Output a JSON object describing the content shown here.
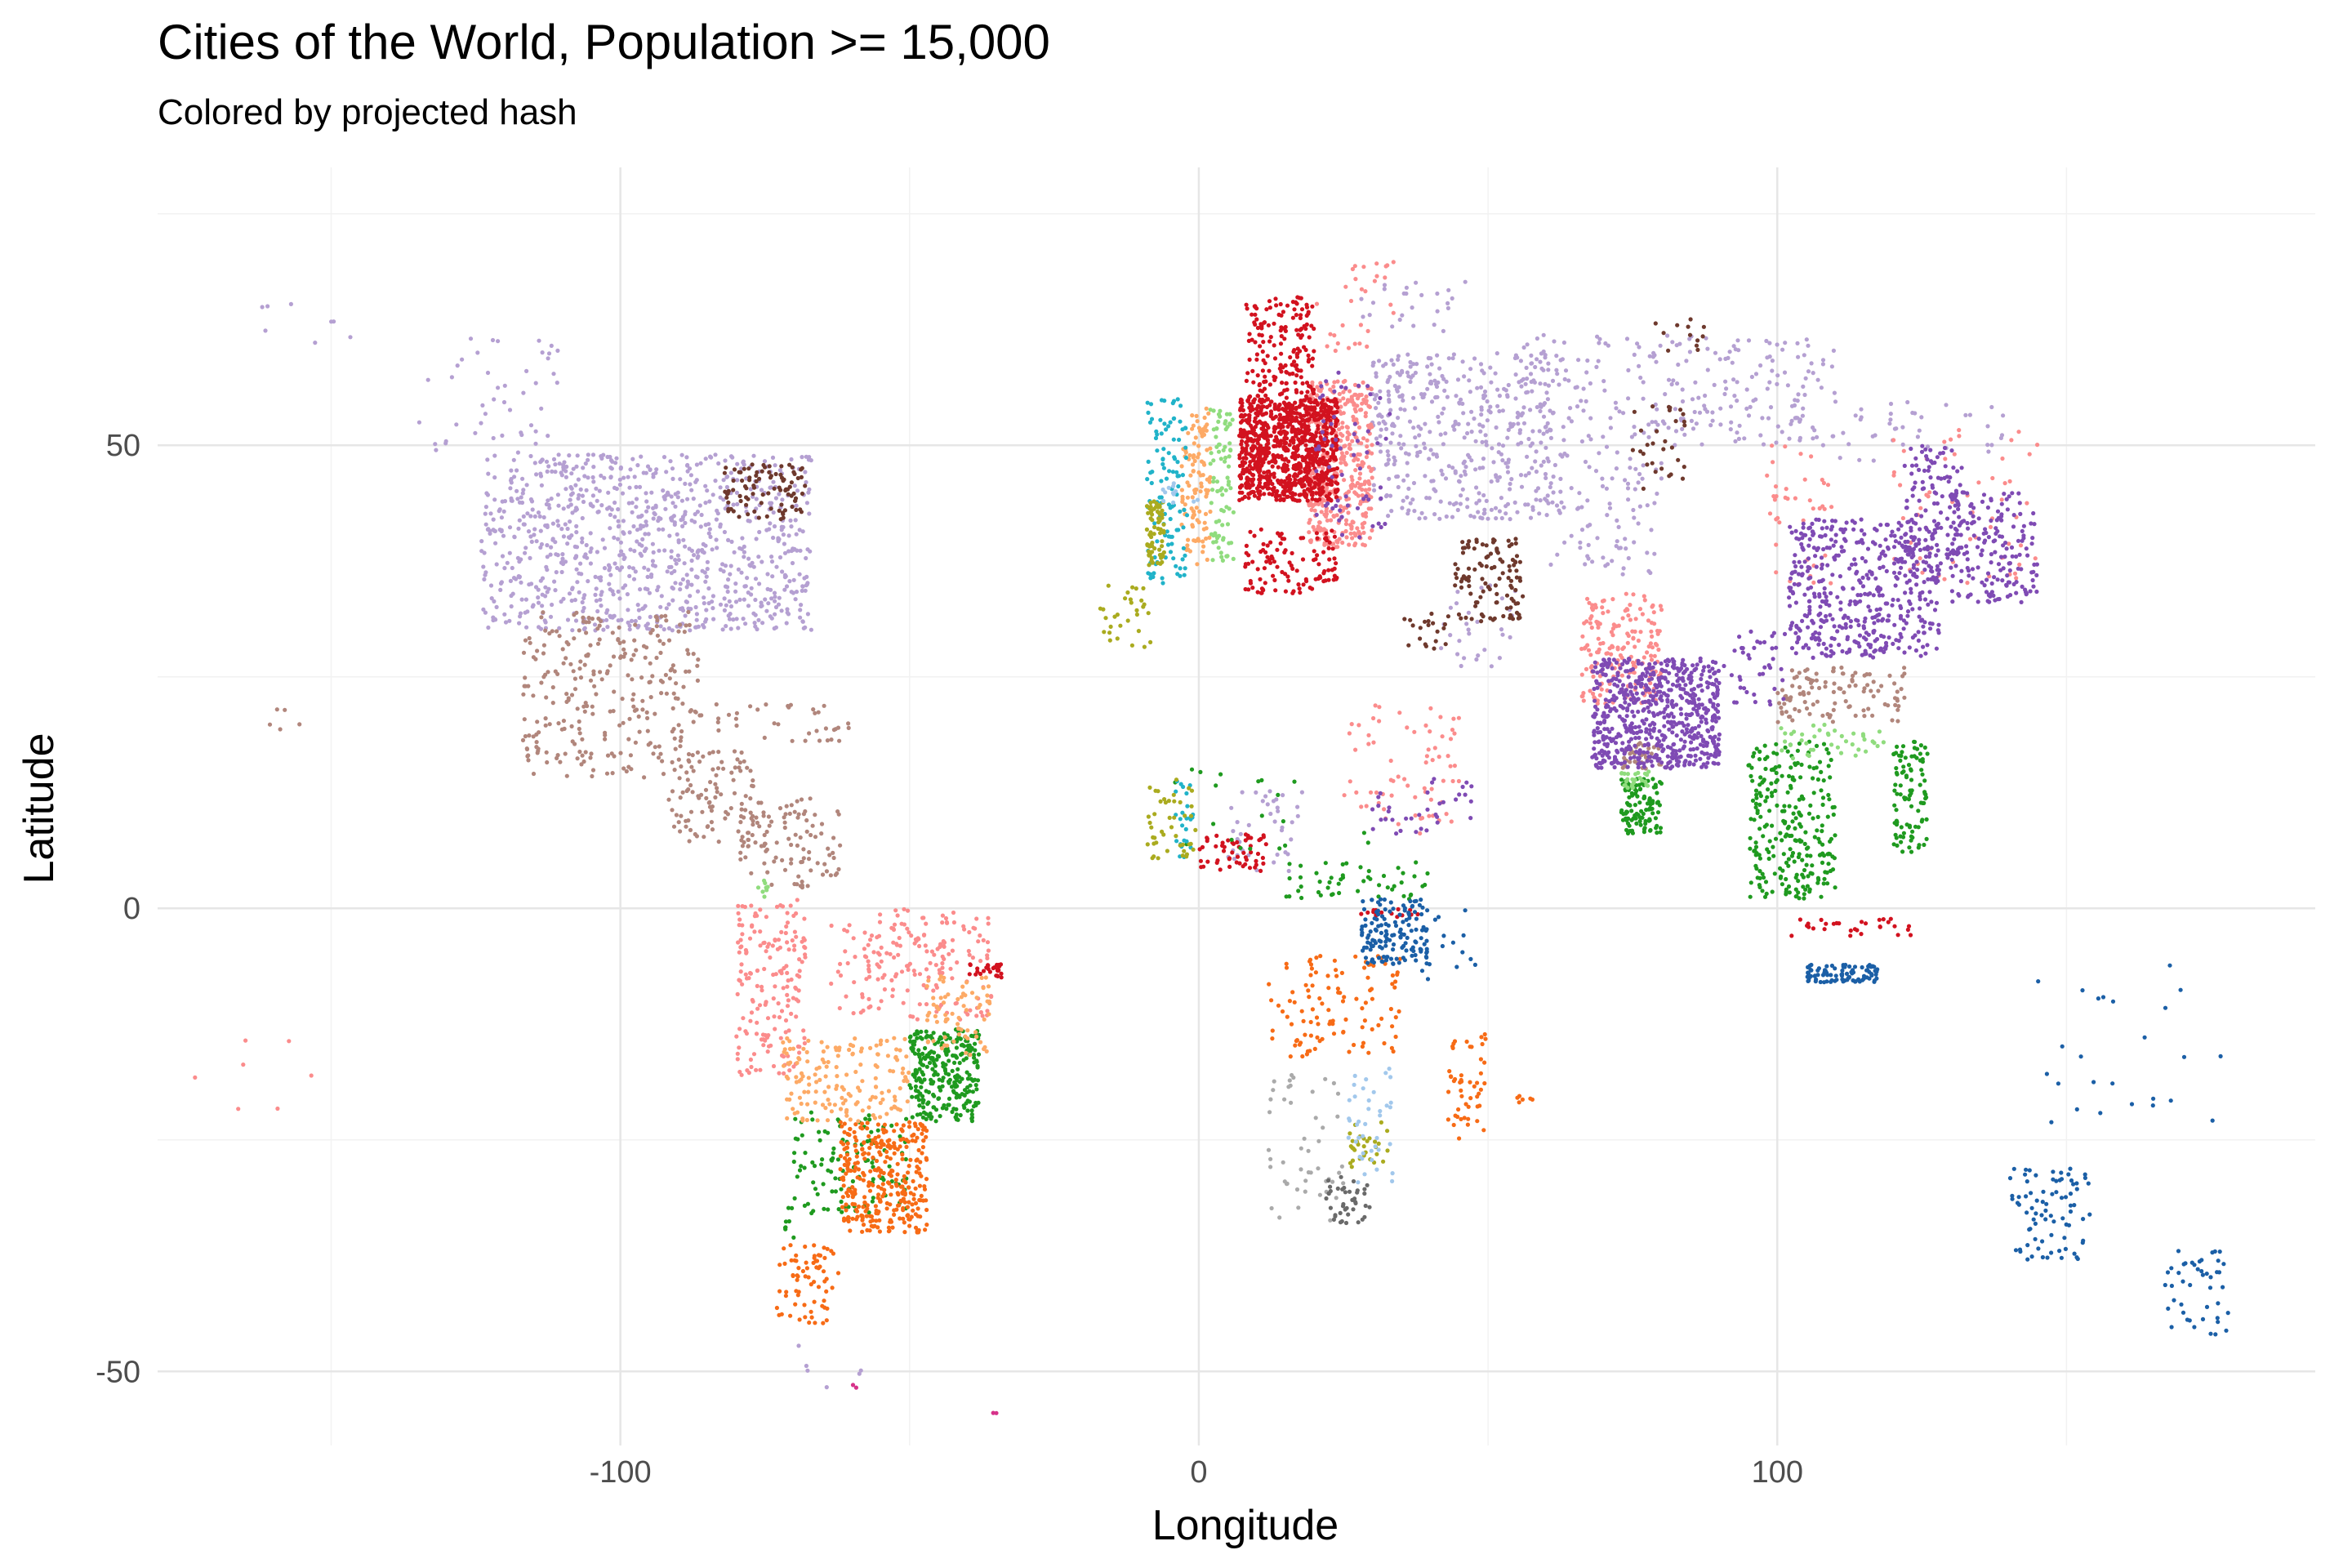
{
  "chart_data": {
    "type": "scatter",
    "title": "Cities of the World, Population >= 15,000",
    "subtitle": "Colored by projected hash",
    "xlabel": "Longitude",
    "ylabel": "Latitude",
    "xlim": [
      -180,
      193
    ],
    "ylim": [
      -58,
      80
    ],
    "x_major_ticks": [
      -100,
      0,
      100
    ],
    "x_minor_ticks": [
      -150,
      -50,
      50,
      150
    ],
    "y_major_ticks": [
      -50,
      0,
      50
    ],
    "y_minor_ticks": [
      -25,
      25,
      75
    ],
    "x_tick_labels": [
      "-100",
      "0",
      "100"
    ],
    "y_tick_labels": [
      "-50",
      "0",
      "50"
    ],
    "grid": true,
    "legend": "none",
    "series": [
      {
        "name": "lavender",
        "color": "#b5a0d2",
        "clusters": [
          {
            "lon": [
              -124,
              -67
            ],
            "lat": [
              30,
              49
            ],
            "n": 950
          },
          {
            "lon": [
              -135,
              -110
            ],
            "lat": [
              49,
              62
            ],
            "n": 45
          },
          {
            "lon": [
              -165,
              -145
            ],
            "lat": [
              60,
              66
            ],
            "n": 8
          },
          {
            "lon": [
              30,
              62
            ],
            "lat": [
              42,
              60
            ],
            "n": 420
          },
          {
            "lon": [
              55,
              110
            ],
            "lat": [
              50,
              62
            ],
            "n": 260
          },
          {
            "lon": [
              60,
              80
            ],
            "lat": [
              36,
              50
            ],
            "n": 90
          },
          {
            "lon": [
              110,
              140
            ],
            "lat": [
              48,
              55
            ],
            "n": 40
          },
          {
            "lon": [
              28,
              48
            ],
            "lat": [
              62,
              68
            ],
            "n": 25
          },
          {
            "lon": [
              5,
              18
            ],
            "lat": [
              4,
              13
            ],
            "n": 40
          },
          {
            "lon": [
              40,
              55
            ],
            "lat": [
              25,
              35
            ],
            "n": 30
          },
          {
            "lon": [
              -70,
              -58
            ],
            "lat": [
              -52,
              -47
            ],
            "n": 6
          }
        ]
      },
      {
        "name": "taupe",
        "color": "#b1867c",
        "clusters": [
          {
            "lon": [
              -117,
              -86
            ],
            "lat": [
              14,
              32
            ],
            "n": 280
          },
          {
            "lon": [
              -92,
              -77
            ],
            "lat": [
              7,
              17
            ],
            "n": 90
          },
          {
            "lon": [
              -80,
              -62
            ],
            "lat": [
              2,
              12
            ],
            "n": 110
          },
          {
            "lon": [
              -85,
              -60
            ],
            "lat": [
              18,
              23
            ],
            "n": 35
          },
          {
            "lon": [
              100,
              122
            ],
            "lat": [
              20,
              26
            ],
            "n": 110
          },
          {
            "lon": [
              73,
              80
            ],
            "lat": [
              15,
              18
            ],
            "n": 35
          },
          {
            "lon": [
              -161,
              -155
            ],
            "lat": [
              19,
              22
            ],
            "n": 5
          }
        ]
      },
      {
        "name": "salmon",
        "color": "#fb8c8c",
        "clusters": [
          {
            "lon": [
              -80,
              -68
            ],
            "lat": [
              -18,
              1
            ],
            "n": 180
          },
          {
            "lon": [
              -64,
              -35
            ],
            "lat": [
              -12,
              -1
            ],
            "n": 120
          },
          {
            "lon": [
              -58,
              -42
            ],
            "lat": [
              -8,
              0
            ],
            "n": 70
          },
          {
            "lon": [
              19,
              30
            ],
            "lat": [
              39,
              57
            ],
            "n": 420
          },
          {
            "lon": [
              66,
              80
            ],
            "lat": [
              22,
              34
            ],
            "n": 180
          },
          {
            "lon": [
              120,
              145
            ],
            "lat": [
              35,
              52
            ],
            "n": 60
          },
          {
            "lon": [
              98,
              110
            ],
            "lat": [
              35,
              50
            ],
            "n": 40
          },
          {
            "lon": [
              25,
              45
            ],
            "lat": [
              8,
              22
            ],
            "n": 70
          },
          {
            "lon": [
              20,
              35
            ],
            "lat": [
              60,
              70
            ],
            "n": 30
          },
          {
            "lon": [
              -175,
              -150
            ],
            "lat": [
              -22,
              -13
            ],
            "n": 7
          }
        ]
      },
      {
        "name": "crimson",
        "color": "#d2121f",
        "clusters": [
          {
            "lon": [
              7,
              24
            ],
            "lat": [
              44,
              55
            ],
            "n": 950
          },
          {
            "lon": [
              8,
              20
            ],
            "lat": [
              55,
              66
            ],
            "n": 170
          },
          {
            "lon": [
              8,
              24
            ],
            "lat": [
              34,
              41
            ],
            "n": 110
          },
          {
            "lon": [
              0,
              12
            ],
            "lat": [
              4,
              8
            ],
            "n": 55
          },
          {
            "lon": [
              100,
              125
            ],
            "lat": [
              -3,
              -1
            ],
            "n": 30
          },
          {
            "lon": [
              -40,
              -34
            ],
            "lat": [
              -7.5,
              -6
            ],
            "n": 30
          },
          {
            "lon": [
              28,
              40
            ],
            "lat": [
              -1,
              0
            ],
            "n": 15
          }
        ]
      },
      {
        "name": "purple",
        "color": "#7f4bb4",
        "clusters": [
          {
            "lon": [
              68,
              90
            ],
            "lat": [
              15,
              27
            ],
            "n": 650
          },
          {
            "lon": [
              102,
              128
            ],
            "lat": [
              27,
              42
            ],
            "n": 470
          },
          {
            "lon": [
              122,
              132
            ],
            "lat": [
              36,
              50
            ],
            "n": 130
          },
          {
            "lon": [
              130,
              145
            ],
            "lat": [
              33,
              45
            ],
            "n": 180
          },
          {
            "lon": [
              20,
              33
            ],
            "lat": [
              40,
              58
            ],
            "n": 60
          },
          {
            "lon": [
              30,
              48
            ],
            "lat": [
              8,
              14
            ],
            "n": 35
          },
          {
            "lon": [
              90,
              102
            ],
            "lat": [
              22,
              30
            ],
            "n": 40
          }
        ]
      },
      {
        "name": "brown",
        "color": "#6e392d",
        "clusters": [
          {
            "lon": [
              -82,
              -68
            ],
            "lat": [
              42,
              48
            ],
            "n": 95
          },
          {
            "lon": [
              44,
              56
            ],
            "lat": [
              31,
              40
            ],
            "n": 110
          },
          {
            "lon": [
              35,
              44
            ],
            "lat": [
              28,
              32
            ],
            "n": 20
          },
          {
            "lon": [
              75,
              84
            ],
            "lat": [
              45,
              55
            ],
            "n": 30
          },
          {
            "lon": [
              78,
              88
            ],
            "lat": [
              60,
              64
            ],
            "n": 12
          }
        ]
      },
      {
        "name": "green",
        "color": "#1f9a1f",
        "clusters": [
          {
            "lon": [
              -50,
              -38
            ],
            "lat": [
              -23,
              -13
            ],
            "n": 280
          },
          {
            "lon": [
              -70,
              -50
            ],
            "lat": [
              -33,
              -22
            ],
            "n": 110
          },
          {
            "lon": [
              -72,
              -70
            ],
            "lat": [
              -36,
              -32
            ],
            "n": 8
          },
          {
            "lon": [
              73,
              80
            ],
            "lat": [
              8,
              14
            ],
            "n": 110
          },
          {
            "lon": [
              95,
              110
            ],
            "lat": [
              1,
              18
            ],
            "n": 260
          },
          {
            "lon": [
              120,
              126
            ],
            "lat": [
              6,
              18
            ],
            "n": 100
          },
          {
            "lon": [
              15,
              40
            ],
            "lat": [
              1,
              5
            ],
            "n": 50
          },
          {
            "lon": [
              -5,
              30
            ],
            "lat": [
              6,
              15
            ],
            "n": 20
          }
        ]
      },
      {
        "name": "orange",
        "color": "#f76b16",
        "clusters": [
          {
            "lon": [
              -62,
              -47
            ],
            "lat": [
              -35,
              -23
            ],
            "n": 330
          },
          {
            "lon": [
              -73,
              -62
            ],
            "lat": [
              -45,
              -36
            ],
            "n": 70
          },
          {
            "lon": [
              12,
              35
            ],
            "lat": [
              -16,
              -5
            ],
            "n": 110
          },
          {
            "lon": [
              43,
              50
            ],
            "lat": [
              -25,
              -13
            ],
            "n": 50
          },
          {
            "lon": [
              55,
              58
            ],
            "lat": [
              -21,
              -20
            ],
            "n": 6
          }
        ]
      },
      {
        "name": "peach",
        "color": "#fdaa66",
        "clusters": [
          {
            "lon": [
              -72,
              -50
            ],
            "lat": [
              -23,
              -14
            ],
            "n": 160
          },
          {
            "lon": [
              -47,
              -36
            ],
            "lat": [
              -16,
              -7
            ],
            "n": 70
          },
          {
            "lon": [
              -3,
              2
            ],
            "lat": [
              37,
              54
            ],
            "n": 110
          }
        ]
      },
      {
        "name": "navy",
        "color": "#1b5fa6",
        "clusters": [
          {
            "lon": [
              28,
              40
            ],
            "lat": [
              -6,
              1
            ],
            "n": 140
          },
          {
            "lon": [
              105,
              118
            ],
            "lat": [
              -8,
              -6
            ],
            "n": 90
          },
          {
            "lon": [
              140,
              154
            ],
            "lat": [
              -38,
              -28
            ],
            "n": 80
          },
          {
            "lon": [
              167,
              178
            ],
            "lat": [
              -46,
              -37
            ],
            "n": 45
          },
          {
            "lon": [
              145,
              180
            ],
            "lat": [
              -25,
              -5
            ],
            "n": 25
          },
          {
            "lon": [
              35,
              48
            ],
            "lat": [
              -8,
              0
            ],
            "n": 18
          }
        ]
      },
      {
        "name": "light-green",
        "color": "#90dc7e",
        "clusters": [
          {
            "lon": [
              2,
              6
            ],
            "lat": [
              37,
              54
            ],
            "n": 80
          },
          {
            "lon": [
              100,
              120
            ],
            "lat": [
              16,
              20
            ],
            "n": 40
          },
          {
            "lon": [
              73,
              78
            ],
            "lat": [
              13,
              15
            ],
            "n": 25
          },
          {
            "lon": [
              -77,
              -73
            ],
            "lat": [
              1,
              3
            ],
            "n": 8
          }
        ]
      },
      {
        "name": "teal",
        "color": "#21b3c9",
        "clusters": [
          {
            "lon": [
              -9,
              -2
            ],
            "lat": [
              35,
              55
            ],
            "n": 110
          },
          {
            "lon": [
              -4,
              -1
            ],
            "lat": [
              5,
              14
            ],
            "n": 25
          }
        ]
      },
      {
        "name": "olive",
        "color": "#aaab1f",
        "clusters": [
          {
            "lon": [
              -9,
              -6
            ],
            "lat": [
              37,
              44
            ],
            "n": 70
          },
          {
            "lon": [
              -18,
              -8
            ],
            "lat": [
              28,
              35
            ],
            "n": 30
          },
          {
            "lon": [
              -9,
              0
            ],
            "lat": [
              5,
              14
            ],
            "n": 45
          },
          {
            "lon": [
              26,
              33
            ],
            "lat": [
              -28,
              -23
            ],
            "n": 30
          }
        ]
      },
      {
        "name": "sky",
        "color": "#a2c8ec",
        "clusters": [
          {
            "lon": [
              25,
              34
            ],
            "lat": [
              -30,
              -17
            ],
            "n": 40
          },
          {
            "lon": [
              -7,
              0
            ],
            "lat": [
              43,
              46
            ],
            "n": 12
          }
        ]
      },
      {
        "name": "gray",
        "color": "#aaaaaa",
        "clusters": [
          {
            "lon": [
              12,
              25
            ],
            "lat": [
              -34,
              -18
            ],
            "n": 50
          }
        ]
      },
      {
        "name": "dark-gray",
        "color": "#6a6a6a",
        "clusters": [
          {
            "lon": [
              22,
              30
            ],
            "lat": [
              -34,
              -29
            ],
            "n": 40
          }
        ]
      },
      {
        "name": "outliers",
        "color": "#d6328a",
        "clusters": [
          {
            "lon": [
              -60,
              -58
            ],
            "lat": [
              -52,
              -51
            ],
            "n": 2
          },
          {
            "lon": [
              -36,
              -34
            ],
            "lat": [
              -54.5,
              -54
            ],
            "n": 2
          }
        ]
      }
    ]
  }
}
